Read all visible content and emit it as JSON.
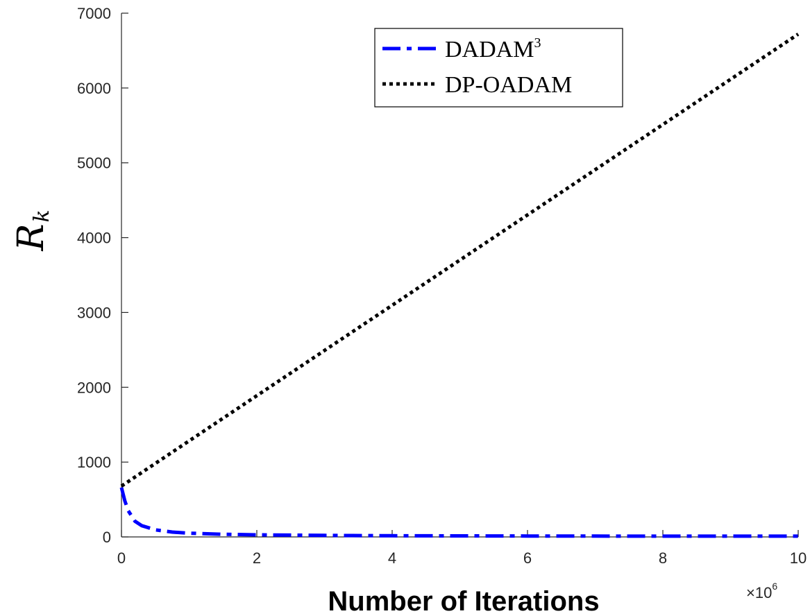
{
  "chart_data": {
    "type": "line",
    "title": "",
    "xlabel": "Number of Iterations",
    "ylabel": "R",
    "ylabel_sub": "k",
    "x_multiplier": "×10",
    "x_multiplier_exp": "6",
    "xlim": [
      0,
      10
    ],
    "ylim": [
      0,
      7000
    ],
    "xticks": [
      0,
      2,
      4,
      6,
      8,
      10
    ],
    "yticks": [
      0,
      1000,
      2000,
      3000,
      4000,
      5000,
      6000,
      7000
    ],
    "grid": false,
    "legend_position": "top-right",
    "series": [
      {
        "name": "DADAM",
        "name_sup": "3",
        "color": "#0000ff",
        "line_style": "dash-dot",
        "x": [
          0,
          0.05,
          0.1,
          0.2,
          0.3,
          0.5,
          0.75,
          1,
          1.5,
          2,
          3,
          4,
          5,
          6,
          7,
          8,
          9,
          10
        ],
        "y": [
          660,
          480,
          350,
          210,
          150,
          95,
          65,
          50,
          35,
          28,
          20,
          16,
          14,
          12,
          11,
          10,
          10,
          10
        ]
      },
      {
        "name": "DP-OADAM",
        "color": "#000000",
        "line_style": "dotted",
        "x": [
          0,
          10
        ],
        "y": [
          680,
          6720
        ]
      }
    ]
  }
}
